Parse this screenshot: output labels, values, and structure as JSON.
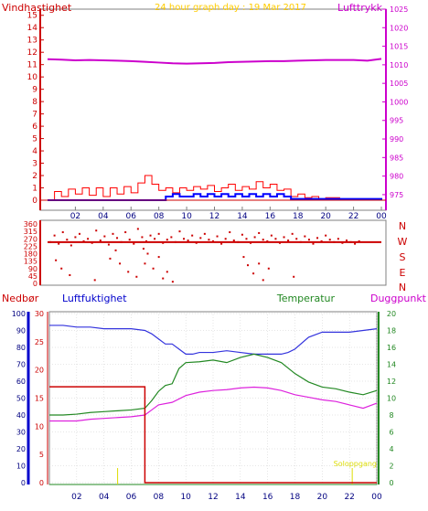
{
  "header": {
    "title": "24 hour graph day : 19 Mar 2017",
    "wind_label": "Vindhastighet",
    "pressure_label": "Lufttrykk",
    "rain_label": "Nedbør",
    "humidity_label": "Luftfuktighet",
    "temperature_label": "Temperatur",
    "dewpoint_label": "Duggpunkt",
    "sunrise_label": "Soloppgang"
  },
  "colors": {
    "wind": "#ff0000",
    "wind_avg": "#0000ff",
    "pressure": "#cc00cc",
    "direction": "#cc0000",
    "rain": "#cc0000",
    "rain_axis": "#0000cc",
    "humidity": "#3333dd",
    "temperature": "#228822",
    "dewpoint": "#dd22dd",
    "title": "#ffcc00",
    "sun": "#dddd00",
    "grid": "#cccccc"
  },
  "chart_data": [
    {
      "type": "line",
      "name": "wind-pressure",
      "x_ticks": [
        "02",
        "04",
        "06",
        "08",
        "10",
        "12",
        "14",
        "16",
        "18",
        "20",
        "22",
        "00"
      ],
      "xlim": [
        0,
        24
      ],
      "y_left_ticks": [
        "0",
        "1",
        "2",
        "3",
        "4",
        "5",
        "6",
        "7",
        "8",
        "9",
        "10",
        "11",
        "12",
        "13",
        "14",
        "15"
      ],
      "ylim_left": [
        0,
        15.5
      ],
      "y_right_ticks": [
        "975",
        "980",
        "985",
        "990",
        "995",
        "1000",
        "1005",
        "1010",
        "1015",
        "1020",
        "1025"
      ],
      "ylim_right": [
        973.5,
        1025
      ],
      "pressure": {
        "x": [
          0,
          1,
          2,
          3,
          4,
          5,
          6,
          7,
          8,
          9,
          10,
          11,
          12,
          13,
          14,
          15,
          16,
          17,
          18,
          19,
          20,
          21,
          22,
          23,
          24
        ],
        "y": [
          1011.5,
          1011.4,
          1011.2,
          1011.3,
          1011.2,
          1011.1,
          1011.0,
          1010.8,
          1010.6,
          1010.4,
          1010.3,
          1010.4,
          1010.5,
          1010.7,
          1010.8,
          1010.9,
          1011.0,
          1011.0,
          1011.1,
          1011.2,
          1011.3,
          1011.3,
          1011.3,
          1011.1,
          1011.6
        ]
      },
      "wind_gust": {
        "x": [
          0,
          0.5,
          1,
          1.5,
          2,
          2.5,
          3,
          3.5,
          4,
          4.5,
          5,
          5.5,
          6,
          6.5,
          7,
          7.5,
          8,
          8.5,
          9,
          9.5,
          10,
          10.5,
          11,
          11.5,
          12,
          12.5,
          13,
          13.5,
          14,
          14.5,
          15,
          15.5,
          16,
          16.5,
          17,
          17.5,
          18,
          18.5,
          19,
          19.5,
          20,
          21,
          22,
          23,
          24
        ],
        "y": [
          0,
          0.7,
          0.3,
          0.9,
          0.5,
          1.0,
          0.4,
          1.0,
          0.3,
          1.0,
          0.5,
          1.1,
          0.6,
          1.4,
          2.0,
          1.3,
          0.8,
          1.0,
          0.6,
          1.0,
          0.8,
          1.1,
          0.9,
          1.2,
          0.7,
          1.0,
          1.3,
          0.8,
          1.1,
          0.9,
          1.5,
          1.0,
          1.3,
          0.8,
          0.9,
          0.3,
          0.5,
          0.2,
          0.3,
          0.1,
          0.2,
          0,
          0,
          0,
          0
        ]
      },
      "wind_avg": {
        "x": [
          0,
          7.5,
          8.5,
          9,
          9.5,
          10.5,
          11,
          11.5,
          12,
          12.5,
          13,
          13.5,
          14,
          14.5,
          15,
          15.5,
          16,
          16.5,
          17,
          17.5,
          24
        ],
        "y": [
          0,
          0,
          0.3,
          0.5,
          0.3,
          0.5,
          0.3,
          0.5,
          0.3,
          0.5,
          0.3,
          0.5,
          0.3,
          0.5,
          0.3,
          0.5,
          0.3,
          0.5,
          0.3,
          0.1,
          0
        ]
      }
    },
    {
      "type": "scatter",
      "name": "wind-direction",
      "x_ticks": [],
      "xlim": [
        0,
        24
      ],
      "y_ticks": [
        "0",
        "45",
        "90",
        "135",
        "180",
        "225",
        "270",
        "315",
        "360"
      ],
      "ylim": [
        0,
        360
      ],
      "direction_labels": [
        "N",
        "W",
        "S",
        "E",
        "N"
      ],
      "points": {
        "x": [
          0.2,
          0.5,
          0.8,
          1.1,
          1.4,
          1.7,
          2.0,
          2.3,
          2.6,
          2.9,
          3.2,
          3.5,
          3.8,
          4.1,
          4.4,
          4.7,
          5.0,
          5.3,
          5.6,
          5.9,
          6.2,
          6.5,
          6.8,
          7.1,
          7.4,
          7.7,
          8.0,
          8.3,
          8.6,
          8.9,
          9.2,
          9.5,
          9.8,
          10.1,
          10.4,
          10.7,
          11.0,
          11.3,
          11.6,
          11.9,
          12.2,
          12.5,
          12.8,
          13.1,
          13.4,
          13.7,
          14.0,
          14.3,
          14.6,
          14.9,
          15.2,
          15.5,
          15.8,
          16.1,
          16.4,
          16.7,
          17.0,
          17.3,
          17.6,
          17.9,
          18.2,
          18.5,
          18.8,
          19.1,
          19.4,
          19.7,
          20.0,
          20.3,
          20.6,
          20.9,
          21.2,
          21.5,
          21.8,
          22.1,
          22.4
        ],
        "y": [
          250,
          290,
          240,
          310,
          265,
          230,
          280,
          300,
          255,
          270,
          245,
          320,
          260,
          285,
          235,
          300,
          275,
          250,
          310,
          265,
          240,
          330,
          280,
          255,
          290,
          270,
          300,
          245,
          265,
          280,
          250,
          315,
          270,
          260,
          290,
          245,
          275,
          300,
          265,
          255,
          285,
          240,
          270,
          310,
          260,
          250,
          295,
          270,
          245,
          280,
          305,
          265,
          255,
          290,
          270,
          245,
          280,
          260,
          300,
          270,
          250,
          285,
          265,
          240,
          275,
          255,
          290,
          265,
          250,
          270,
          245,
          260,
          250,
          240,
          255
        ]
      },
      "scatter_low": {
        "x": [
          0.6,
          1.0,
          1.6,
          3.4,
          4.5,
          5.2,
          5.8,
          6.4,
          7.0,
          7.2,
          7.6,
          8.3,
          8.6,
          9.0,
          14.1,
          14.4,
          14.8,
          15.2,
          15.5,
          15.9,
          17.7,
          4.9,
          6.9,
          8.0
        ],
        "y": [
          140,
          90,
          50,
          20,
          150,
          120,
          70,
          40,
          120,
          180,
          90,
          30,
          70,
          10,
          160,
          110,
          60,
          120,
          20,
          90,
          40,
          200,
          210,
          160
        ]
      },
      "avg": {
        "x": [
          0,
          24
        ],
        "y": [
          250,
          250
        ]
      }
    },
    {
      "type": "line",
      "name": "rain-humidity-temperature",
      "x_ticks": [
        "02",
        "04",
        "06",
        "08",
        "10",
        "12",
        "14",
        "16",
        "18",
        "20",
        "22",
        "00"
      ],
      "xlim": [
        0,
        24
      ],
      "y_rain_ticks": [
        "0",
        "5",
        "10",
        "15",
        "20",
        "25",
        "30"
      ],
      "ylim_rain": [
        0,
        30
      ],
      "y_humidity_ticks": [
        "0",
        "10",
        "20",
        "30",
        "40",
        "50",
        "60",
        "70",
        "80",
        "90",
        "100"
      ],
      "ylim_humidity": [
        0,
        100
      ],
      "y_temp_ticks": [
        "0",
        "2",
        "4",
        "6",
        "8",
        "10",
        "12",
        "14",
        "16",
        "18",
        "20"
      ],
      "ylim_temp": [
        0,
        20
      ],
      "humidity": {
        "x": [
          0,
          1,
          2,
          3,
          4,
          5,
          6,
          7,
          7.5,
          8,
          8.5,
          9,
          9.5,
          10,
          10.5,
          11,
          12,
          13,
          14,
          15,
          16,
          17,
          17.5,
          18,
          19,
          20,
          21,
          22,
          23,
          24
        ],
        "y": [
          93,
          93,
          92,
          92,
          91,
          91,
          91,
          90,
          88,
          85,
          82,
          82,
          79,
          76,
          76,
          77,
          77,
          78,
          77,
          76,
          76,
          76,
          77,
          79,
          86,
          89,
          89,
          89,
          90,
          91
        ]
      },
      "temperature": {
        "x": [
          0,
          1,
          2,
          3,
          4,
          5,
          6,
          7,
          7.5,
          8,
          8.5,
          9,
          9.5,
          10,
          11,
          12,
          13,
          14,
          15,
          16,
          17,
          18,
          19,
          20,
          21,
          22,
          23,
          24
        ],
        "y": [
          8.0,
          8.0,
          8.1,
          8.3,
          8.4,
          8.5,
          8.6,
          8.8,
          9.7,
          10.8,
          11.5,
          11.7,
          13.5,
          14.2,
          14.3,
          14.5,
          14.2,
          14.8,
          15.2,
          14.8,
          14.2,
          12.9,
          11.9,
          11.3,
          11.1,
          10.7,
          10.4,
          10.9
        ]
      },
      "dewpoint": {
        "x": [
          0,
          1,
          2,
          3,
          4,
          5,
          6,
          7,
          7.5,
          8,
          9,
          10,
          11,
          12,
          13,
          14,
          15,
          16,
          17,
          18,
          19,
          20,
          21,
          22,
          23,
          24
        ],
        "y": [
          7.3,
          7.3,
          7.3,
          7.5,
          7.6,
          7.7,
          7.8,
          8.0,
          8.6,
          9.2,
          9.5,
          10.3,
          10.7,
          10.9,
          11.0,
          11.2,
          11.3,
          11.2,
          10.9,
          10.4,
          10.1,
          9.8,
          9.6,
          9.2,
          8.8,
          9.4
        ]
      },
      "rain": {
        "x": [
          0,
          7.0,
          7.0,
          24
        ],
        "y": [
          17,
          17,
          0,
          0
        ]
      }
    }
  ]
}
